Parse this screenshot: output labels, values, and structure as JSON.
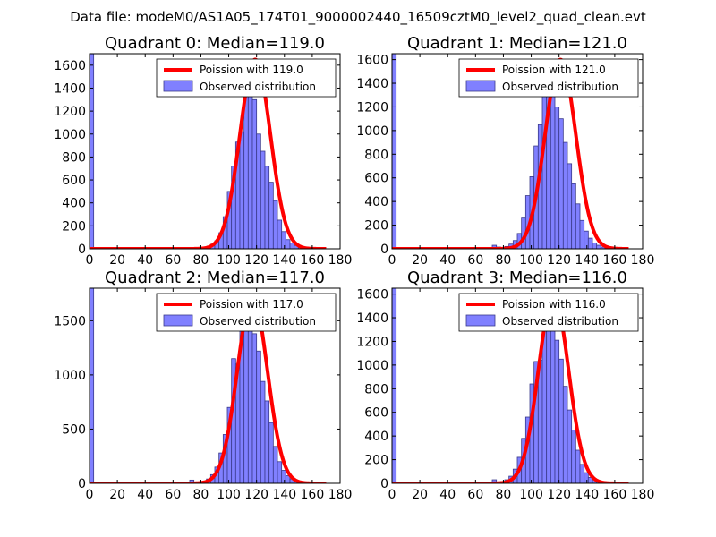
{
  "suptitle": "Data file: modeM0/AS1A05_174T01_9000002440_16509cztM0_level2_quad_clean.evt",
  "colors": {
    "bar_fill": "#8080ff",
    "bar_edge": "#3a3a8c",
    "poisson_line": "#ff0000",
    "poisson_line_alpha_overlay": "#ff9999"
  },
  "chart_data": [
    {
      "type": "bar",
      "title": "Quadrant 0: Median=119.0",
      "xlabel": "",
      "ylabel": "",
      "xlim": [
        0,
        180
      ],
      "ylim": [
        0,
        1700
      ],
      "xticks": [
        0,
        20,
        40,
        60,
        80,
        100,
        120,
        140,
        160,
        180
      ],
      "yticks": [
        0,
        200,
        400,
        600,
        800,
        1000,
        1200,
        1400,
        1600
      ],
      "bin_width": 3,
      "legend": {
        "loc": "upper-right",
        "entries": [
          "Poission with 119.0",
          "Observed distribution"
        ]
      },
      "bins": {
        "x": [
          0,
          75,
          78,
          81,
          84,
          87,
          90,
          93,
          96,
          99,
          102,
          105,
          108,
          111,
          114,
          117,
          120,
          123,
          126,
          129,
          132,
          135,
          138,
          141,
          144,
          147,
          150,
          153,
          156,
          159,
          162,
          165
        ],
        "y": [
          1700,
          2,
          5,
          10,
          20,
          40,
          70,
          140,
          280,
          500,
          720,
          930,
          1020,
          1450,
          1450,
          1300,
          1000,
          850,
          720,
          580,
          420,
          250,
          150,
          80,
          50,
          30,
          20,
          10,
          5,
          3,
          1,
          0
        ]
      },
      "poisson": {
        "label": "Poission with 119.0",
        "mean": 119.0,
        "peak": 1650,
        "x_range": [
          0,
          170
        ]
      }
    },
    {
      "type": "bar",
      "title": "Quadrant 1: Median=121.0",
      "xlabel": "",
      "ylabel": "",
      "xlim": [
        0,
        180
      ],
      "ylim": [
        0,
        1650
      ],
      "xticks": [
        0,
        20,
        40,
        60,
        80,
        100,
        120,
        140,
        160,
        180
      ],
      "yticks": [
        0,
        200,
        400,
        600,
        800,
        1000,
        1200,
        1400,
        1600
      ],
      "bin_width": 3,
      "legend": {
        "loc": "upper-right",
        "entries": [
          "Poission with 121.0",
          "Observed distribution"
        ]
      },
      "bins": {
        "x": [
          0,
          72,
          75,
          78,
          81,
          84,
          87,
          90,
          93,
          96,
          99,
          102,
          105,
          108,
          111,
          114,
          117,
          120,
          123,
          126,
          129,
          132,
          135,
          138,
          141,
          144,
          147,
          150,
          153,
          156,
          159,
          162,
          165
        ],
        "y": [
          1650,
          30,
          15,
          10,
          20,
          40,
          70,
          130,
          260,
          450,
          610,
          870,
          1050,
          1450,
          1400,
          1320,
          1200,
          1100,
          900,
          720,
          550,
          380,
          240,
          150,
          90,
          50,
          30,
          15,
          8,
          4,
          2,
          1,
          0
        ]
      },
      "poisson": {
        "label": "Poission with 121.0",
        "mean": 121.0,
        "peak": 1600,
        "x_range": [
          0,
          170
        ]
      }
    },
    {
      "type": "bar",
      "title": "Quadrant 2: Median=117.0",
      "xlabel": "",
      "ylabel": "",
      "xlim": [
        0,
        180
      ],
      "ylim": [
        0,
        1800
      ],
      "xticks": [
        0,
        20,
        40,
        60,
        80,
        100,
        120,
        140,
        160,
        180
      ],
      "yticks": [
        0,
        500,
        1000,
        1500
      ],
      "bin_width": 3,
      "legend": {
        "loc": "upper-right",
        "entries": [
          "Poission with 117.0",
          "Observed distribution"
        ]
      },
      "bins": {
        "x": [
          0,
          72,
          75,
          78,
          81,
          84,
          87,
          90,
          93,
          96,
          99,
          102,
          105,
          108,
          111,
          114,
          117,
          120,
          123,
          126,
          129,
          132,
          135,
          138,
          141,
          144,
          147,
          150,
          153,
          156,
          159,
          162,
          165
        ],
        "y": [
          1800,
          30,
          5,
          10,
          20,
          40,
          80,
          150,
          280,
          450,
          700,
          1150,
          1100,
          1540,
          1700,
          1500,
          1380,
          1220,
          940,
          760,
          560,
          340,
          200,
          120,
          70,
          40,
          20,
          10,
          5,
          3,
          1,
          0,
          0
        ]
      },
      "poisson": {
        "label": "Poission with 117.0",
        "mean": 117.0,
        "peak": 1720,
        "x_range": [
          0,
          170
        ]
      }
    },
    {
      "type": "bar",
      "title": "Quadrant 3: Median=116.0",
      "xlabel": "",
      "ylabel": "",
      "xlim": [
        0,
        180
      ],
      "ylim": [
        0,
        1650
      ],
      "xticks": [
        0,
        20,
        40,
        60,
        80,
        100,
        120,
        140,
        160,
        180
      ],
      "yticks": [
        0,
        200,
        400,
        600,
        800,
        1000,
        1200,
        1400,
        1600
      ],
      "bin_width": 3,
      "legend": {
        "loc": "upper-right",
        "entries": [
          "Poission with 116.0",
          "Observed distribution"
        ]
      },
      "bins": {
        "x": [
          0,
          72,
          75,
          78,
          81,
          84,
          87,
          90,
          93,
          96,
          99,
          102,
          105,
          108,
          111,
          114,
          117,
          120,
          123,
          126,
          129,
          132,
          135,
          138,
          141,
          144,
          147,
          150,
          153,
          156,
          159,
          162,
          165
        ],
        "y": [
          1650,
          30,
          10,
          15,
          30,
          60,
          120,
          220,
          380,
          560,
          840,
          1030,
          1040,
          1460,
          1450,
          1330,
          1210,
          1050,
          820,
          620,
          450,
          280,
          160,
          90,
          50,
          30,
          15,
          8,
          4,
          2,
          1,
          0,
          0
        ]
      },
      "poisson": {
        "label": "Poission with 116.0",
        "mean": 116.0,
        "peak": 1590,
        "x_range": [
          0,
          170
        ]
      }
    }
  ]
}
